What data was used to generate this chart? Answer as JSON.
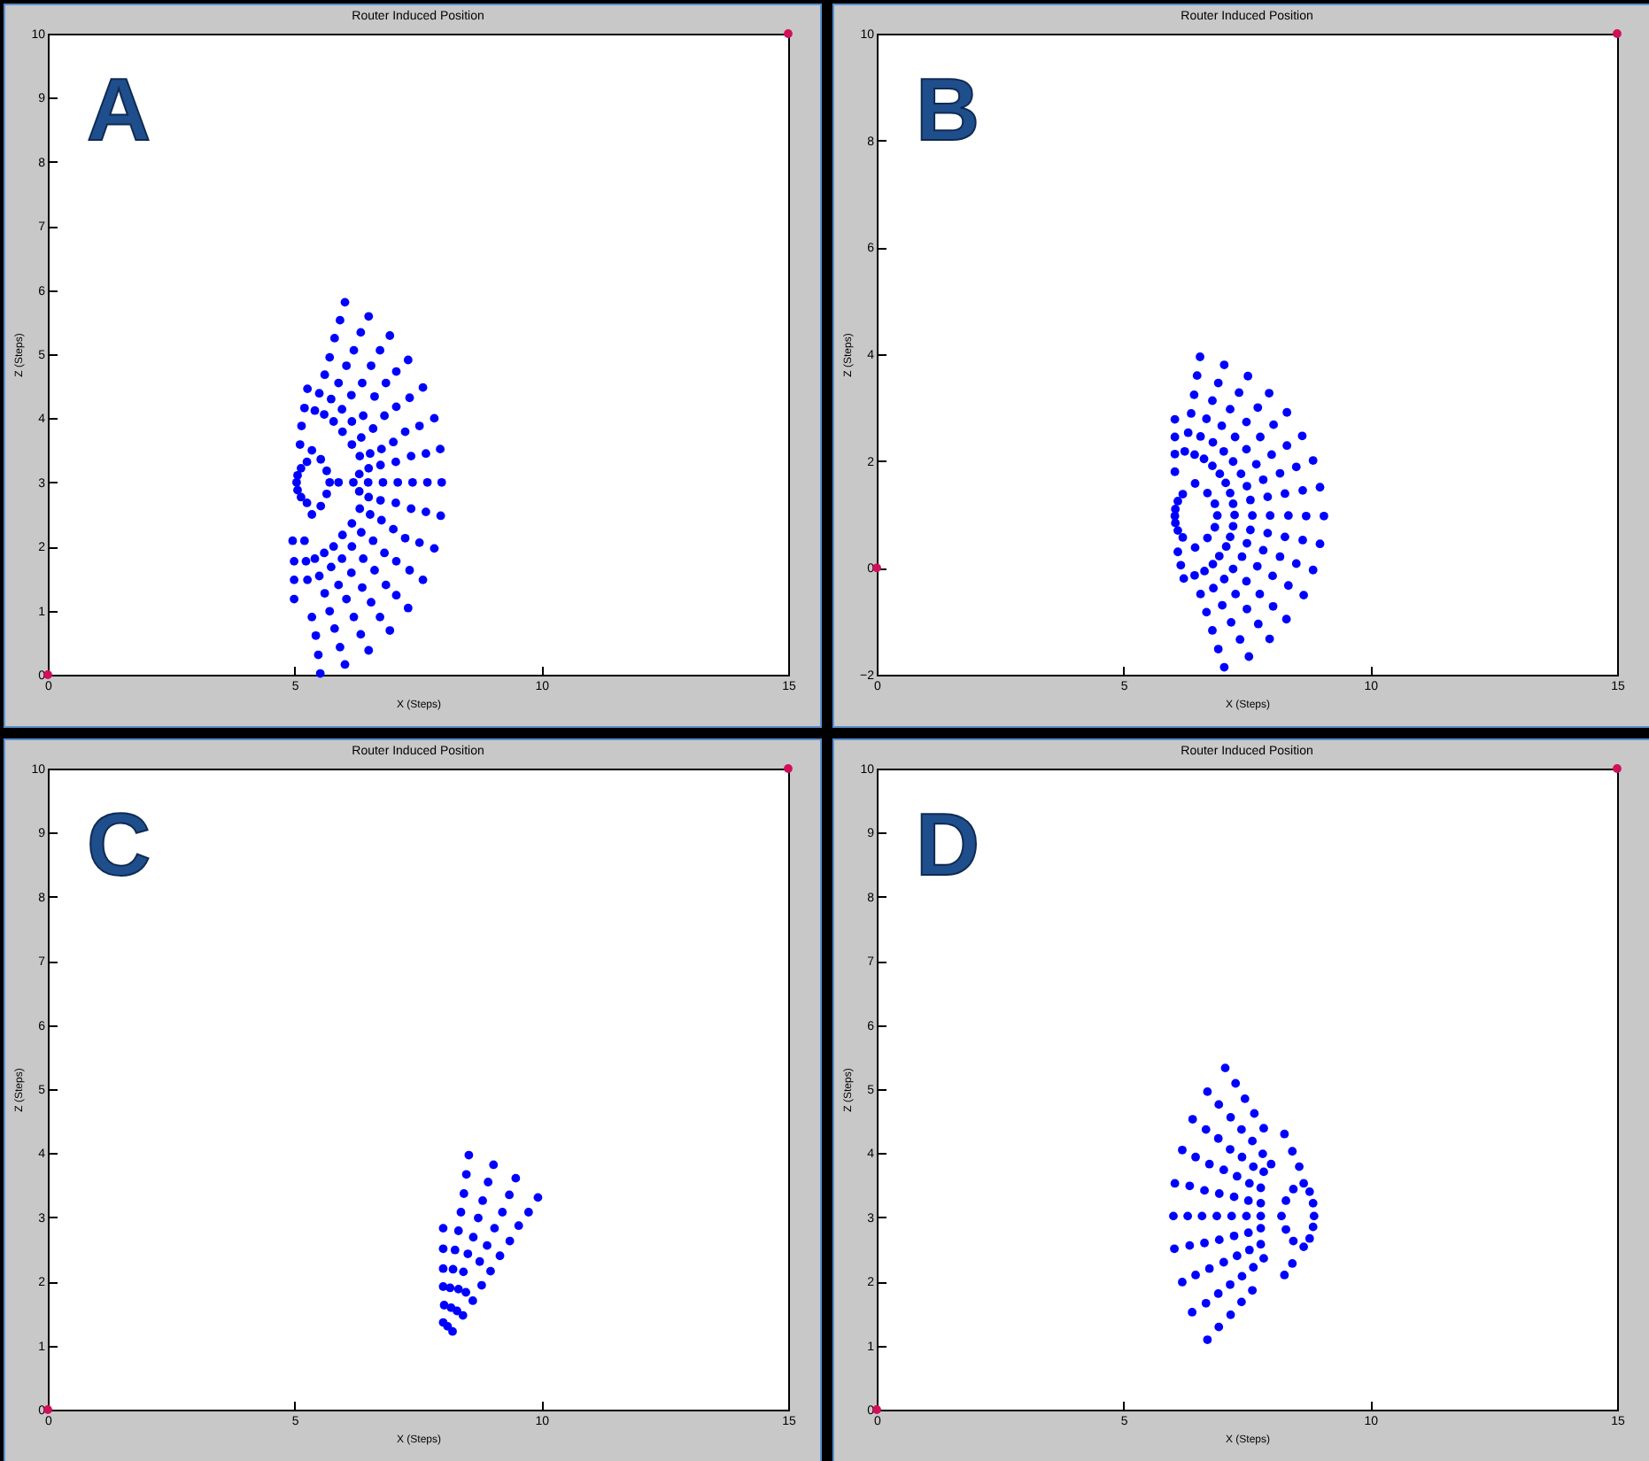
{
  "chart_data": [
    {
      "type": "scatter",
      "title": "Router Induced Position",
      "xlabel": "X (Steps)",
      "ylabel": "Z (Steps)",
      "annotations": [
        "A"
      ],
      "xlim": [
        0,
        15
      ],
      "ylim": [
        0,
        10
      ],
      "xticks": [
        0,
        5,
        10,
        15
      ],
      "yticks": [
        0,
        1,
        2,
        3,
        4,
        5,
        6,
        7,
        8,
        9,
        10
      ],
      "marker": "circle",
      "series": [
        {
          "color": "#0000ff",
          "x": [
            6.02,
            5.92,
            5.81,
            5.71,
            5.61,
            5.5,
            5.41,
            6.5,
            6.34,
            6.2,
            6.05,
            5.89,
            5.74,
            5.6,
            6.93,
            6.73,
            6.55,
            6.37,
            6.15,
            5.96,
            5.79,
            7.3,
            7.06,
            6.85,
            6.62,
            6.39,
            6.16,
            5.97,
            7.6,
            7.33,
            7.06,
            6.82,
            6.59,
            6.35,
            6.16,
            7.83,
            7.53,
            7.24,
            7.0,
            6.76,
            6.53,
            6.32,
            7.95,
            7.66,
            7.36,
            7.05,
            6.74,
            6.5,
            6.31,
            7.98,
            7.69,
            7.39,
            7.09,
            6.79,
            6.49,
            6.19,
            5.89,
            7.96,
            7.66,
            7.36,
            7.05,
            6.74,
            6.5,
            6.31,
            7.83,
            7.53,
            7.24,
            7.0,
            6.76,
            6.53,
            6.32,
            7.6,
            7.33,
            7.06,
            6.82,
            6.59,
            6.35,
            6.16,
            7.3,
            7.06,
            6.85,
            6.62,
            6.39,
            6.16,
            5.97,
            6.93,
            6.73,
            6.55,
            6.37,
            6.15,
            5.96,
            5.79,
            6.5,
            6.34,
            6.2,
            6.05,
            5.89,
            5.74,
            5.6,
            6.02,
            5.92,
            5.81,
            5.71,
            5.61,
            5.5,
            5.41,
            5.52,
            5.48,
            5.43,
            5.35,
            4.96,
            4.99,
            4.99,
            4.99,
            5.2,
            5.23,
            5.26,
            5.26,
            5.2,
            5.14,
            5.11,
            5.25,
            5.13,
            5.06,
            5.04,
            5.06,
            5.13,
            5.25,
            5.35,
            5.53,
            5.65,
            5.71,
            5.65,
            5.53,
            5.35
          ],
          "values": [
            5.81,
            5.53,
            5.25,
            4.95,
            4.68,
            4.39,
            4.12,
            5.59,
            5.34,
            5.06,
            4.82,
            4.55,
            4.3,
            4.06,
            5.29,
            5.06,
            4.82,
            4.55,
            4.36,
            4.14,
            3.95,
            4.91,
            4.73,
            4.55,
            4.34,
            4.04,
            3.95,
            3.79,
            4.48,
            4.32,
            4.18,
            4.04,
            3.84,
            3.7,
            3.59,
            4.0,
            3.88,
            3.79,
            3.63,
            3.52,
            3.45,
            3.41,
            3.52,
            3.45,
            3.41,
            3.32,
            3.27,
            3.22,
            3.13,
            3.0,
            3.0,
            3.0,
            3.0,
            3.0,
            3.0,
            3.0,
            3.0,
            2.48,
            2.54,
            2.59,
            2.68,
            2.72,
            2.77,
            2.86,
            1.97,
            2.06,
            2.13,
            2.27,
            2.41,
            2.5,
            2.59,
            1.48,
            1.63,
            1.77,
            1.9,
            2.09,
            2.22,
            2.36,
            1.04,
            1.24,
            1.4,
            1.63,
            1.81,
            2.0,
            2.18,
            0.69,
            0.9,
            1.13,
            1.36,
            1.59,
            1.81,
            2.0,
            0.38,
            0.63,
            0.9,
            1.18,
            1.4,
            1.68,
            1.9,
            0.16,
            0.43,
            0.72,
            0.99,
            1.27,
            1.54,
            1.81,
            0.02,
            0.31,
            0.61,
            0.9,
            2.09,
            1.77,
            1.48,
            1.18,
            2.09,
            1.77,
            1.48,
            4.46,
            4.16,
            3.88,
            3.59,
            3.32,
            3.22,
            3.11,
            3.0,
            2.88,
            2.77,
            2.68,
            3.5,
            3.36,
            3.18,
            3.0,
            2.82,
            2.63,
            2.5
          ]
        },
        {
          "color": "#d0105a",
          "x": [
            0,
            15
          ],
          "values": [
            0,
            10
          ]
        }
      ]
    },
    {
      "type": "scatter",
      "title": "Router Induced Position",
      "xlabel": "X (Steps)",
      "ylabel": "Z (Steps)",
      "annotations": [
        "B"
      ],
      "xlim": [
        0,
        15
      ],
      "ylim": [
        -2,
        10
      ],
      "xticks": [
        0,
        5,
        10,
        15
      ],
      "yticks": [
        -2,
        0,
        2,
        4,
        6,
        8,
        10
      ],
      "marker": "circle",
      "series": [
        {
          "color": "#0000ff",
          "x": [
            6.55,
            6.49,
            6.43,
            6.37,
            6.31,
            6.24,
            7.04,
            6.92,
            6.8,
            6.68,
            6.56,
            6.44,
            7.52,
            7.34,
            7.16,
            6.99,
            6.81,
            6.63,
            7.95,
            7.72,
            7.49,
            7.26,
            7.03,
            6.8,
            8.31,
            8.04,
            7.77,
            7.49,
            7.22,
            6.95,
            8.62,
            8.31,
            8.0,
            7.69,
            7.38,
            7.07,
            8.84,
            8.5,
            8.17,
            7.83,
            7.5,
            7.16,
            8.98,
            8.63,
            8.27,
            7.92,
            7.57,
            7.22,
            9.06,
            8.7,
            8.34,
            7.97,
            7.61,
            7.25,
            8.98,
            8.63,
            8.27,
            7.92,
            7.57,
            7.22,
            8.84,
            8.5,
            8.17,
            7.83,
            7.5,
            7.16,
            8.65,
            8.34,
            8.02,
            7.71,
            7.4,
            7.08,
            8.3,
            8.03,
            7.76,
            7.49,
            7.22,
            6.94,
            7.96,
            7.73,
            7.5,
            7.27,
            7.04,
            6.81,
            7.54,
            7.36,
            7.18,
            7.0,
            6.82,
            6.64,
            7.04,
            6.92,
            6.8,
            6.68,
            6.56,
            6.44,
            6.04,
            6.04,
            6.04,
            6.04,
            6.1,
            6.16,
            6.22,
            6.2,
            6.1,
            6.05,
            6.04,
            6.05,
            6.1,
            6.2,
            6.45,
            6.7,
            6.85,
            6.9,
            6.85,
            6.7,
            6.45
          ],
          "values": [
            3.95,
            3.6,
            3.24,
            2.89,
            2.53,
            2.18,
            3.8,
            3.46,
            3.13,
            2.79,
            2.46,
            2.12,
            3.59,
            3.28,
            2.97,
            2.66,
            2.35,
            2.04,
            3.27,
            3.0,
            2.73,
            2.45,
            2.18,
            1.91,
            2.91,
            2.68,
            2.45,
            2.22,
            1.99,
            1.76,
            2.47,
            2.29,
            2.12,
            1.94,
            1.76,
            1.59,
            2.01,
            1.89,
            1.77,
            1.65,
            1.53,
            1.4,
            1.51,
            1.45,
            1.39,
            1.33,
            1.27,
            1.2,
            0.97,
            0.97,
            0.98,
            0.98,
            0.98,
            0.99,
            0.45,
            0.52,
            0.58,
            0.65,
            0.71,
            0.78,
            -0.04,
            0.08,
            0.21,
            0.33,
            0.46,
            0.58,
            -0.51,
            -0.33,
            -0.15,
            0.03,
            0.21,
            0.4,
            -0.96,
            -0.72,
            -0.49,
            -0.25,
            -0.02,
            0.22,
            -1.33,
            -1.05,
            -0.77,
            -0.49,
            -0.21,
            0.07,
            -1.66,
            -1.34,
            -1.02,
            -0.7,
            -0.38,
            -0.06,
            -1.86,
            -1.52,
            -1.17,
            -0.83,
            -0.49,
            -0.14,
            2.78,
            2.45,
            2.13,
            1.8,
            0.3,
            0.05,
            -0.2,
            1.38,
            1.25,
            1.1,
            0.97,
            0.84,
            0.7,
            0.57,
            1.58,
            1.4,
            1.2,
            0.98,
            0.76,
            0.56,
            0.38
          ]
        },
        {
          "color": "#d0105a",
          "x": [
            0,
            15
          ],
          "values": [
            0,
            10
          ]
        }
      ]
    },
    {
      "type": "scatter",
      "title": "Router Induced Position",
      "xlabel": "X (Steps)",
      "ylabel": "Z (Steps)",
      "annotations": [
        "C"
      ],
      "xlim": [
        0,
        15
      ],
      "ylim": [
        0,
        10
      ],
      "xticks": [
        0,
        5,
        10,
        15
      ],
      "yticks": [
        0,
        1,
        2,
        3,
        4,
        5,
        6,
        7,
        8,
        9,
        10
      ],
      "marker": "circle",
      "series": [
        {
          "color": "#0000ff",
          "x": [
            8.53,
            9.03,
            8.48,
            8.92,
            9.48,
            8.43,
            8.81,
            9.35,
            9.93,
            8.37,
            8.72,
            9.21,
            9.74,
            8.01,
            8.32,
            8.62,
            9.05,
            9.54,
            8.01,
            8.25,
            8.51,
            8.9,
            9.36,
            8.01,
            8.21,
            8.42,
            8.75,
            9.16,
            8.01,
            8.15,
            8.32,
            8.47,
            8.79,
            8.97,
            8.61,
            8.03,
            8.17,
            8.29,
            8.41,
            8.01,
            8.1,
            8.2
          ],
          "values": [
            3.97,
            3.82,
            3.67,
            3.55,
            3.61,
            3.37,
            3.26,
            3.35,
            3.31,
            3.08,
            2.99,
            3.08,
            3.08,
            2.83,
            2.79,
            2.69,
            2.83,
            2.87,
            2.51,
            2.49,
            2.43,
            2.56,
            2.63,
            2.2,
            2.19,
            2.15,
            2.31,
            2.4,
            1.92,
            1.9,
            1.88,
            1.83,
            1.94,
            2.16,
            1.7,
            1.63,
            1.59,
            1.54,
            1.47,
            1.36,
            1.3,
            1.22
          ]
        },
        {
          "color": "#d0105a",
          "x": [
            0,
            15
          ],
          "values": [
            0,
            10
          ]
        }
      ]
    },
    {
      "type": "scatter",
      "title": "Router Induced Position",
      "xlabel": "X (Steps)",
      "ylabel": "Z (Steps)",
      "annotations": [
        "D"
      ],
      "xlim": [
        0,
        15
      ],
      "ylim": [
        0,
        10
      ],
      "xticks": [
        0,
        5,
        10,
        15
      ],
      "yticks": [
        0,
        1,
        2,
        3,
        4,
        5,
        6,
        7,
        8,
        9,
        10
      ],
      "marker": "circle",
      "series": [
        {
          "color": "#0000ff",
          "x": [
            7.06,
            7.27,
            7.46,
            7.65,
            7.84,
            6.7,
            6.93,
            7.17,
            7.39,
            7.61,
            7.82,
            7.99,
            6.4,
            6.67,
            6.92,
            7.16,
            7.4,
            7.63,
            7.84,
            6.19,
            6.46,
            6.74,
            7.03,
            7.3,
            7.55,
            7.78,
            6.04,
            6.34,
            6.64,
            6.94,
            7.24,
            7.53,
            7.78,
            6.01,
            6.3,
            6.59,
            6.89,
            7.19,
            7.49,
            7.78,
            6.03,
            6.34,
            6.64,
            6.94,
            7.24,
            7.53,
            7.78,
            6.19,
            6.46,
            6.74,
            7.03,
            7.3,
            7.55,
            7.78,
            6.39,
            6.67,
            6.92,
            7.16,
            7.4,
            7.63,
            7.84,
            6.7,
            6.93,
            7.17,
            7.39,
            7.61,
            8.26,
            8.42,
            8.56,
            8.26,
            8.42,
            8.65,
            8.77,
            8.84,
            8.86,
            8.84,
            8.77,
            8.65,
            8.44,
            8.29,
            8.2,
            8.29,
            8.44
          ],
          "values": [
            5.33,
            5.09,
            4.85,
            4.62,
            4.39,
            4.96,
            4.76,
            4.56,
            4.37,
            4.19,
            3.99,
            3.83,
            4.53,
            4.37,
            4.23,
            4.06,
            3.94,
            3.79,
            3.71,
            4.05,
            3.94,
            3.83,
            3.74,
            3.64,
            3.53,
            3.46,
            3.53,
            3.49,
            3.42,
            3.37,
            3.32,
            3.26,
            3.22,
            3.02,
            3.02,
            3.02,
            3.02,
            3.02,
            3.02,
            3.02,
            2.51,
            2.56,
            2.6,
            2.65,
            2.71,
            2.76,
            2.83,
            1.99,
            2.1,
            2.2,
            2.3,
            2.4,
            2.49,
            2.58,
            1.52,
            1.66,
            1.81,
            1.95,
            2.08,
            2.22,
            2.36,
            1.09,
            1.29,
            1.48,
            1.68,
            1.86,
            4.3,
            4.03,
            3.79,
            2.1,
            2.28,
            3.53,
            3.4,
            3.22,
            3.02,
            2.85,
            2.67,
            2.54,
            3.44,
            3.26,
            3.02,
            2.81,
            2.63
          ]
        },
        {
          "color": "#d0105a",
          "x": [
            0,
            15
          ],
          "values": [
            0,
            10
          ]
        }
      ]
    }
  ]
}
